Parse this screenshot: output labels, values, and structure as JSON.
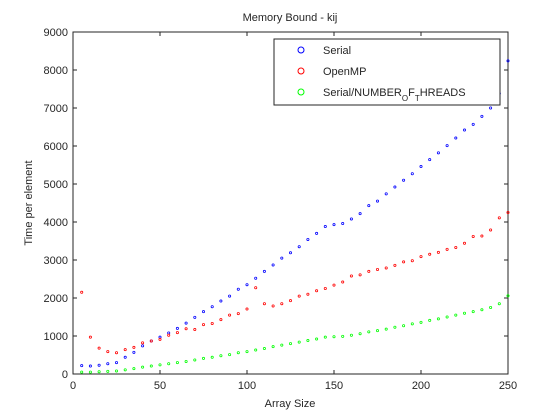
{
  "chart_data": {
    "type": "scatter",
    "title": "Memory Bound - kij",
    "xlabel": "Array Size",
    "ylabel": "Time per element",
    "xlim": [
      0,
      250
    ],
    "ylim": [
      0,
      9000
    ],
    "xticks": [
      "0",
      "50",
      "100",
      "150",
      "200",
      "250"
    ],
    "yticks": [
      "0",
      "1000",
      "2000",
      "3000",
      "4000",
      "5000",
      "6000",
      "7000",
      "8000",
      "9000"
    ],
    "grid": false,
    "legend_position": "top-right",
    "legend": [
      {
        "label": "Serial",
        "color": "#0000ff"
      },
      {
        "label": "OpenMP",
        "color": "#ff0000"
      },
      {
        "label_parts": [
          "Serial/NUMBER",
          "O",
          "F",
          "T",
          "HREADS"
        ],
        "color": "#00ff00"
      }
    ],
    "series": [
      {
        "name": "Serial",
        "color": "#0000ff",
        "x": [
          5,
          10,
          15,
          20,
          25,
          30,
          35,
          40,
          45,
          50,
          55,
          60,
          65,
          70,
          75,
          80,
          85,
          90,
          95,
          100,
          105,
          110,
          115,
          120,
          125,
          130,
          135,
          140,
          145,
          150,
          155,
          160,
          165,
          170,
          175,
          180,
          185,
          190,
          195,
          200,
          205,
          210,
          215,
          220,
          225,
          230,
          235,
          240,
          245,
          250
        ],
        "y": [
          220,
          210,
          230,
          270,
          300,
          440,
          570,
          740,
          870,
          970,
          1080,
          1200,
          1340,
          1490,
          1640,
          1770,
          1920,
          2050,
          2230,
          2350,
          2520,
          2700,
          2870,
          3050,
          3190,
          3350,
          3540,
          3700,
          3880,
          3930,
          3960,
          4080,
          4220,
          4430,
          4550,
          4740,
          4920,
          5100,
          5270,
          5460,
          5640,
          5820,
          6010,
          6210,
          6420,
          6570,
          6780,
          7000,
          7380,
          8240
        ]
      },
      {
        "name": "OpenMP",
        "color": "#ff0000",
        "x": [
          5,
          10,
          15,
          20,
          25,
          30,
          35,
          40,
          45,
          50,
          55,
          60,
          65,
          70,
          75,
          80,
          85,
          90,
          95,
          100,
          105,
          110,
          115,
          120,
          125,
          130,
          135,
          140,
          145,
          150,
          155,
          160,
          165,
          170,
          175,
          180,
          185,
          190,
          195,
          200,
          205,
          210,
          215,
          220,
          225,
          230,
          235,
          240,
          245,
          250
        ],
        "y": [
          2150,
          970,
          680,
          590,
          560,
          640,
          700,
          820,
          870,
          910,
          1020,
          1090,
          1190,
          1170,
          1300,
          1330,
          1430,
          1550,
          1590,
          1710,
          2270,
          1850,
          1790,
          1850,
          1930,
          2050,
          2100,
          2190,
          2250,
          2340,
          2420,
          2580,
          2610,
          2700,
          2750,
          2790,
          2860,
          2950,
          2980,
          3090,
          3150,
          3200,
          3280,
          3330,
          3440,
          3620,
          3630,
          3790,
          4110,
          4250
        ]
      },
      {
        "name": "",
        "color": "#00ff00",
        "x": [
          5,
          10,
          15,
          20,
          25,
          30,
          35,
          40,
          45,
          50,
          55,
          60,
          65,
          70,
          75,
          80,
          85,
          90,
          95,
          100,
          105,
          110,
          115,
          120,
          125,
          130,
          135,
          140,
          145,
          150,
          155,
          160,
          165,
          170,
          175,
          180,
          185,
          190,
          195,
          200,
          205,
          210,
          215,
          220,
          225,
          230,
          235,
          240,
          245,
          250
        ],
        "y": [
          50,
          50,
          60,
          70,
          80,
          110,
          140,
          180,
          210,
          240,
          270,
          300,
          330,
          370,
          410,
          440,
          480,
          510,
          560,
          590,
          630,
          670,
          720,
          760,
          800,
          840,
          880,
          920,
          970,
          980,
          990,
          1020,
          1060,
          1110,
          1140,
          1180,
          1230,
          1270,
          1320,
          1360,
          1410,
          1450,
          1500,
          1550,
          1600,
          1640,
          1690,
          1750,
          1850,
          2060
        ]
      }
    ]
  }
}
